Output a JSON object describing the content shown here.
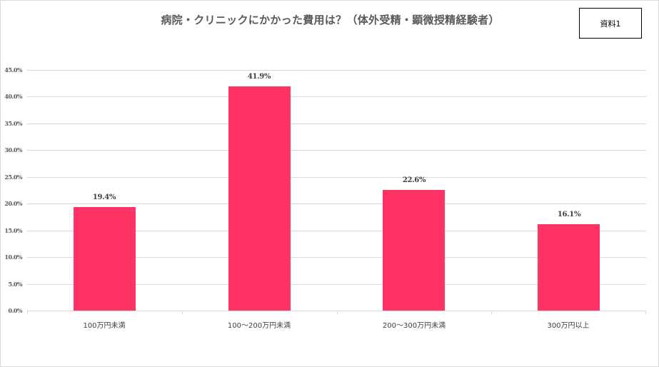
{
  "badge": {
    "label": "資料1"
  },
  "chart_data": {
    "type": "bar",
    "title": "病院・クリニックにかかった費用は？（体外受精・顕微授精経験者）",
    "categories": [
      "100万円未満",
      "100～200万円未満",
      "200～300万円未満",
      "300万円以上"
    ],
    "values": [
      19.4,
      41.9,
      22.6,
      16.1
    ],
    "value_labels": [
      "19.4%",
      "41.9%",
      "22.6%",
      "16.1%"
    ],
    "xlabel": "",
    "ylabel": "",
    "ylim": [
      0,
      45
    ],
    "yticks": [
      "0.0%",
      "5.0%",
      "10.0%",
      "15.0%",
      "20.0%",
      "25.0%",
      "30.0%",
      "35.0%",
      "40.0%",
      "45.0%"
    ],
    "grid": true,
    "legend": "none",
    "bar_color": "#ff3366",
    "grid_color": "#d9d9d9"
  }
}
